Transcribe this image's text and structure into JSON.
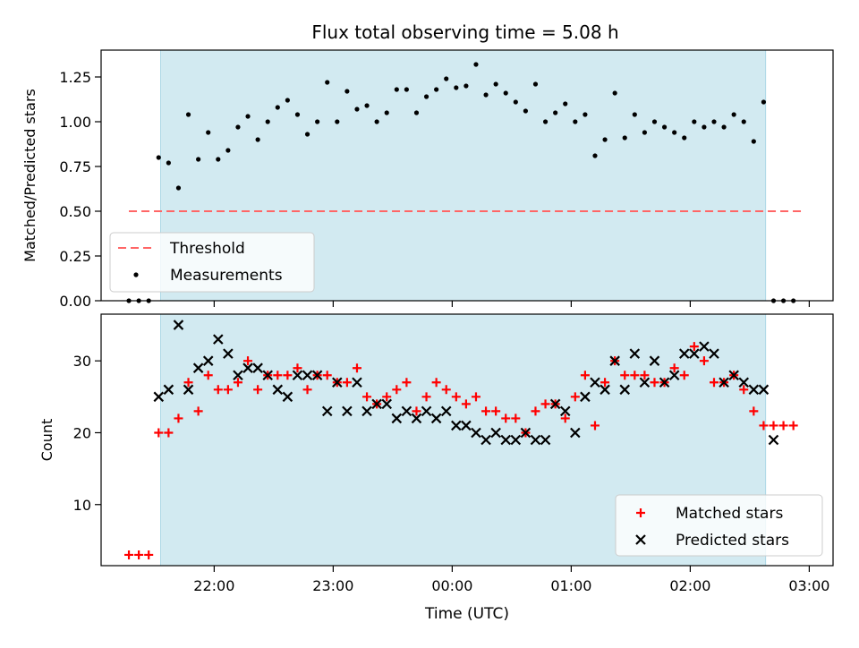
{
  "figure_title": "Flux total observing time = 5.08 h",
  "colors": {
    "shade": "#add8e6",
    "threshold": "#ff6666",
    "measurement": "#000000",
    "matched": "#ff0000",
    "predicted": "#000000"
  },
  "chart_data": [
    {
      "type": "scatter",
      "panel": "top",
      "title": "Flux total observing time = 5.08 h",
      "ylabel": "Matched/Predicted stars",
      "xlim_hours": [
        21.05,
        27.2
      ],
      "ylim": [
        0,
        1.4
      ],
      "yticks": [
        0,
        0.25,
        0.5,
        0.75,
        1.0,
        1.25
      ],
      "ytick_labels": [
        "0.00",
        "0.25",
        "0.50",
        "0.75",
        "1.00",
        "1.25"
      ],
      "shaded_span": [
        "21:33",
        "02:38"
      ],
      "legend": [
        "Threshold",
        "Measurements"
      ],
      "legend_position": "lower left",
      "series": [
        {
          "name": "Threshold",
          "kind": "dashed-line",
          "x": [
            "21:17",
            "02:58"
          ],
          "y": [
            0.5,
            0.5
          ]
        },
        {
          "name": "Measurements",
          "kind": "points",
          "x": [
            "21:17",
            "21:22",
            "21:27",
            "21:32",
            "21:37",
            "21:42",
            "21:47",
            "21:52",
            "21:57",
            "22:02",
            "22:07",
            "22:12",
            "22:17",
            "22:22",
            "22:27",
            "22:32",
            "22:37",
            "22:42",
            "22:47",
            "22:52",
            "22:57",
            "23:02",
            "23:07",
            "23:12",
            "23:17",
            "23:22",
            "23:27",
            "23:32",
            "23:37",
            "23:42",
            "23:47",
            "23:52",
            "23:57",
            "00:02",
            "00:07",
            "00:12",
            "00:17",
            "00:22",
            "00:27",
            "00:32",
            "00:37",
            "00:42",
            "00:47",
            "00:52",
            "00:57",
            "01:02",
            "01:07",
            "01:12",
            "01:17",
            "01:22",
            "01:27",
            "01:32",
            "01:37",
            "01:42",
            "01:47",
            "01:52",
            "01:57",
            "02:02",
            "02:07",
            "02:12",
            "02:17",
            "02:22",
            "02:27",
            "02:32",
            "02:37",
            "02:42",
            "02:47",
            "02:52"
          ],
          "y": [
            0,
            0,
            0,
            0.8,
            0.77,
            0.63,
            1.04,
            0.79,
            0.94,
            0.79,
            0.84,
            0.97,
            1.03,
            0.9,
            1.0,
            1.08,
            1.12,
            1.04,
            0.93,
            1.0,
            1.22,
            1.0,
            1.17,
            1.07,
            1.09,
            1.0,
            1.05,
            1.18,
            1.18,
            1.05,
            1.14,
            1.18,
            1.24,
            1.19,
            1.2,
            1.32,
            1.15,
            1.21,
            1.16,
            1.11,
            1.06,
            1.21,
            1.0,
            1.05,
            1.1,
            1.0,
            1.04,
            0.81,
            0.9,
            1.16,
            0.91,
            1.04,
            0.94,
            1.0,
            0.97,
            0.94,
            0.91,
            1.0,
            0.97,
            1.0,
            0.97,
            1.04,
            1.0,
            0.89,
            1.11,
            0,
            0,
            0
          ]
        }
      ]
    },
    {
      "type": "scatter",
      "panel": "bottom",
      "xlabel": "Time (UTC)",
      "ylabel": "Count",
      "xlim_hours": [
        21.05,
        27.2
      ],
      "ylim": [
        1.5,
        36.5
      ],
      "yticks": [
        10,
        20,
        30
      ],
      "ytick_labels": [
        "10",
        "20",
        "30"
      ],
      "xticks_hours": [
        22,
        23,
        24,
        25,
        26,
        27
      ],
      "xtick_labels": [
        "22:00",
        "23:00",
        "00:00",
        "01:00",
        "02:00",
        "03:00"
      ],
      "shaded_span": [
        "21:33",
        "02:38"
      ],
      "legend": [
        "Matched stars",
        "Predicted stars"
      ],
      "legend_position": "lower right",
      "x": [
        "21:17",
        "21:22",
        "21:27",
        "21:32",
        "21:37",
        "21:42",
        "21:47",
        "21:52",
        "21:57",
        "22:02",
        "22:07",
        "22:12",
        "22:17",
        "22:22",
        "22:27",
        "22:32",
        "22:37",
        "22:42",
        "22:47",
        "22:52",
        "22:57",
        "23:02",
        "23:07",
        "23:12",
        "23:17",
        "23:22",
        "23:27",
        "23:32",
        "23:37",
        "23:42",
        "23:47",
        "23:52",
        "23:57",
        "00:02",
        "00:07",
        "00:12",
        "00:17",
        "00:22",
        "00:27",
        "00:32",
        "00:37",
        "00:42",
        "00:47",
        "00:52",
        "00:57",
        "01:02",
        "01:07",
        "01:12",
        "01:17",
        "01:22",
        "01:27",
        "01:32",
        "01:37",
        "01:42",
        "01:47",
        "01:52",
        "01:57",
        "02:02",
        "02:07",
        "02:12",
        "02:17",
        "02:22",
        "02:27",
        "02:32",
        "02:37",
        "02:42",
        "02:47",
        "02:52"
      ],
      "series": [
        {
          "name": "Matched stars",
          "marker": "+",
          "values": [
            3,
            3,
            3,
            20,
            20,
            22,
            27,
            23,
            28,
            26,
            26,
            27,
            30,
            26,
            28,
            28,
            28,
            29,
            26,
            28,
            28,
            27,
            27,
            29,
            25,
            24,
            25,
            26,
            27,
            23,
            25,
            27,
            26,
            25,
            24,
            25,
            23,
            23,
            22,
            22,
            20,
            23,
            24,
            24,
            22,
            25,
            28,
            21,
            27,
            30,
            28,
            28,
            28,
            27,
            27,
            29,
            28,
            32,
            30,
            27,
            27,
            28,
            26,
            23,
            21,
            21,
            21,
            21
          ]
        },
        {
          "name": "Predicted stars",
          "marker": "x",
          "values": [
            null,
            null,
            null,
            25,
            26,
            35,
            26,
            29,
            30,
            33,
            31,
            28,
            29,
            29,
            28,
            26,
            25,
            28,
            28,
            28,
            23,
            27,
            23,
            27,
            23,
            24,
            24,
            22,
            23,
            22,
            23,
            22,
            23,
            21,
            21,
            20,
            19,
            20,
            19,
            19,
            20,
            19,
            19,
            24,
            23,
            20,
            25,
            27,
            26,
            30,
            26,
            31,
            27,
            30,
            27,
            28,
            31,
            31,
            32,
            31,
            27,
            28,
            27,
            26,
            26,
            19,
            null,
            null
          ]
        }
      ]
    }
  ]
}
